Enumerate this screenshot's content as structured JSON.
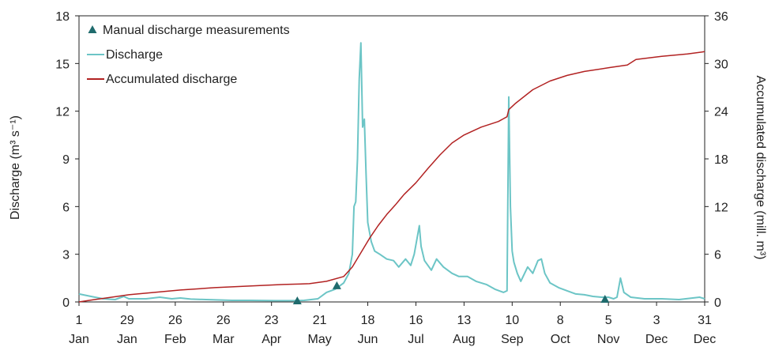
{
  "chart_data": {
    "type": "line",
    "x_tick_labels": [
      {
        "day": "1",
        "month": "Jan"
      },
      {
        "day": "29",
        "month": "Jan"
      },
      {
        "day": "26",
        "month": "Feb"
      },
      {
        "day": "26",
        "month": "Mar"
      },
      {
        "day": "23",
        "month": "Apr"
      },
      {
        "day": "21",
        "month": "May"
      },
      {
        "day": "18",
        "month": "Jun"
      },
      {
        "day": "16",
        "month": "Jul"
      },
      {
        "day": "13",
        "month": "Aug"
      },
      {
        "day": "10",
        "month": "Sep"
      },
      {
        "day": "8",
        "month": "Oct"
      },
      {
        "day": "5",
        "month": "Nov"
      },
      {
        "day": "3",
        "month": "Dec"
      },
      {
        "day": "31",
        "month": "Dec"
      }
    ],
    "x_tick_day_of_year": [
      1,
      29,
      57,
      85,
      113,
      141,
      169,
      197,
      225,
      253,
      281,
      309,
      337,
      365
    ],
    "xlim": [
      1,
      365
    ],
    "y_left": {
      "label": "Discharge (m³ s⁻¹)",
      "ticks": [
        "0",
        "3",
        "6",
        "9",
        "12",
        "15",
        "18"
      ],
      "lim": [
        0,
        18
      ]
    },
    "y_right": {
      "label": "Accumulated discharge (mill. m³)",
      "ticks": [
        "0",
        "6",
        "12",
        "18",
        "24",
        "30",
        "36"
      ],
      "lim": [
        0,
        36
      ]
    },
    "legend": {
      "position": "top-left",
      "entries": [
        {
          "label": "Manual discharge measurements",
          "marker": "triangle"
        },
        {
          "label": "Discharge",
          "marker": "line"
        },
        {
          "label": "Accumulated discharge",
          "marker": "line"
        }
      ]
    },
    "series": [
      {
        "name": "Discharge",
        "axis": "left",
        "color": "#6cc5c6",
        "points": [
          [
            1,
            0.5
          ],
          [
            8,
            0.35
          ],
          [
            15,
            0.2
          ],
          [
            22,
            0.15
          ],
          [
            27,
            0.35
          ],
          [
            30,
            0.2
          ],
          [
            40,
            0.2
          ],
          [
            48,
            0.3
          ],
          [
            55,
            0.2
          ],
          [
            60,
            0.25
          ],
          [
            66,
            0.18
          ],
          [
            75,
            0.15
          ],
          [
            90,
            0.1
          ],
          [
            100,
            0.1
          ],
          [
            115,
            0.08
          ],
          [
            125,
            0.08
          ],
          [
            132,
            0.1
          ],
          [
            140,
            0.2
          ],
          [
            145,
            0.6
          ],
          [
            150,
            0.8
          ],
          [
            155,
            1.2
          ],
          [
            158,
            1.8
          ],
          [
            160,
            3.0
          ],
          [
            161,
            6.0
          ],
          [
            162,
            6.3
          ],
          [
            163,
            9.0
          ],
          [
            164,
            14.0
          ],
          [
            165,
            16.3
          ],
          [
            166,
            11.0
          ],
          [
            167,
            11.5
          ],
          [
            168,
            8.0
          ],
          [
            169,
            5.0
          ],
          [
            171,
            3.8
          ],
          [
            173,
            3.2
          ],
          [
            176,
            3.0
          ],
          [
            180,
            2.7
          ],
          [
            184,
            2.6
          ],
          [
            187,
            2.2
          ],
          [
            191,
            2.7
          ],
          [
            194,
            2.3
          ],
          [
            196,
            3.0
          ],
          [
            199,
            4.8
          ],
          [
            200,
            3.5
          ],
          [
            202,
            2.6
          ],
          [
            206,
            2.0
          ],
          [
            209,
            2.7
          ],
          [
            213,
            2.2
          ],
          [
            218,
            1.8
          ],
          [
            222,
            1.6
          ],
          [
            227,
            1.6
          ],
          [
            232,
            1.3
          ],
          [
            238,
            1.1
          ],
          [
            243,
            0.8
          ],
          [
            248,
            0.6
          ],
          [
            250,
            0.7
          ],
          [
            251,
            12.9
          ],
          [
            252,
            6.0
          ],
          [
            253,
            3.2
          ],
          [
            254,
            2.5
          ],
          [
            256,
            1.8
          ],
          [
            258,
            1.3
          ],
          [
            262,
            2.2
          ],
          [
            265,
            1.8
          ],
          [
            268,
            2.6
          ],
          [
            270,
            2.7
          ],
          [
            272,
            1.8
          ],
          [
            275,
            1.2
          ],
          [
            280,
            0.9
          ],
          [
            285,
            0.7
          ],
          [
            290,
            0.5
          ],
          [
            295,
            0.45
          ],
          [
            300,
            0.35
          ],
          [
            305,
            0.3
          ],
          [
            309,
            0.3
          ],
          [
            312,
            0.2
          ],
          [
            314,
            0.3
          ],
          [
            316,
            1.5
          ],
          [
            318,
            0.6
          ],
          [
            322,
            0.3
          ],
          [
            330,
            0.2
          ],
          [
            340,
            0.2
          ],
          [
            350,
            0.15
          ],
          [
            358,
            0.25
          ],
          [
            362,
            0.3
          ],
          [
            365,
            0.2
          ]
        ]
      },
      {
        "name": "Accumulated discharge",
        "axis": "right",
        "color": "#b22222",
        "points": [
          [
            1,
            0
          ],
          [
            10,
            0.3
          ],
          [
            20,
            0.6
          ],
          [
            30,
            0.9
          ],
          [
            45,
            1.2
          ],
          [
            60,
            1.5
          ],
          [
            80,
            1.8
          ],
          [
            100,
            2.0
          ],
          [
            120,
            2.2
          ],
          [
            135,
            2.3
          ],
          [
            145,
            2.6
          ],
          [
            155,
            3.2
          ],
          [
            160,
            4.4
          ],
          [
            165,
            6.2
          ],
          [
            170,
            8.0
          ],
          [
            175,
            9.6
          ],
          [
            180,
            11.0
          ],
          [
            185,
            12.2
          ],
          [
            190,
            13.5
          ],
          [
            197,
            15.0
          ],
          [
            204,
            16.8
          ],
          [
            211,
            18.5
          ],
          [
            218,
            20.0
          ],
          [
            225,
            21.0
          ],
          [
            235,
            22.0
          ],
          [
            245,
            22.7
          ],
          [
            250,
            23.3
          ],
          [
            251,
            24.2
          ],
          [
            255,
            25.0
          ],
          [
            265,
            26.7
          ],
          [
            275,
            27.8
          ],
          [
            285,
            28.5
          ],
          [
            295,
            29.0
          ],
          [
            310,
            29.5
          ],
          [
            320,
            29.8
          ],
          [
            325,
            30.5
          ],
          [
            340,
            30.9
          ],
          [
            355,
            31.2
          ],
          [
            365,
            31.5
          ]
        ]
      }
    ],
    "manual_measurements": {
      "name": "Manual discharge measurements",
      "color": "#1f6b6d",
      "points": [
        [
          128,
          0.05
        ],
        [
          151,
          1.0
        ],
        [
          307,
          0.15
        ]
      ]
    }
  }
}
